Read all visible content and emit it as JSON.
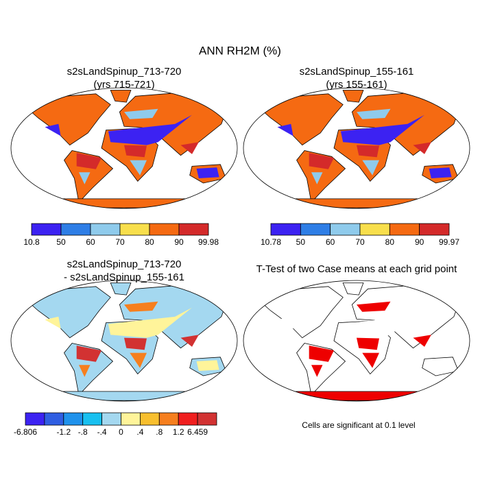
{
  "title": "ANN RH2M (%)",
  "panels": [
    {
      "title": [
        "s2sLandSpinup_713-720",
        "(yrs 715-721)"
      ],
      "colorbar": {
        "colors": [
          "#3c22f2",
          "#2e7ee6",
          "#8fcbec",
          "#f8df4c",
          "#f56a12",
          "#d42a2a"
        ],
        "labels": [
          "10.8",
          "50",
          "60",
          "70",
          "80",
          "90",
          "99.98"
        ]
      }
    },
    {
      "title": [
        "s2sLandSpinup_155-161",
        "(yrs 155-161)"
      ],
      "colorbar": {
        "colors": [
          "#3c22f2",
          "#2e7ee6",
          "#8fcbec",
          "#f8df4c",
          "#f56a12",
          "#d42a2a"
        ],
        "labels": [
          "10.78",
          "50",
          "60",
          "70",
          "80",
          "90",
          "99.97"
        ]
      }
    },
    {
      "title": [
        "s2sLandSpinup_713-720",
        "- s2sLandSpinup_155-161"
      ],
      "colorbar": {
        "colors": [
          "#3c22f2",
          "#2f5ee2",
          "#1f92ec",
          "#18c0f0",
          "#a4d8f0",
          "#fff49a",
          "#f8bf2e",
          "#f67f1e",
          "#f01e1e",
          "#d23232"
        ],
        "labels": [
          "-6.806",
          "-1.2",
          "-.8",
          "-.4",
          "0",
          ".4",
          ".8",
          "1.2",
          "6.459"
        ]
      }
    },
    {
      "title": [
        "T-Test of two Case means at each grid point"
      ],
      "note": "Cells are significant at 0.1 level"
    }
  ]
}
